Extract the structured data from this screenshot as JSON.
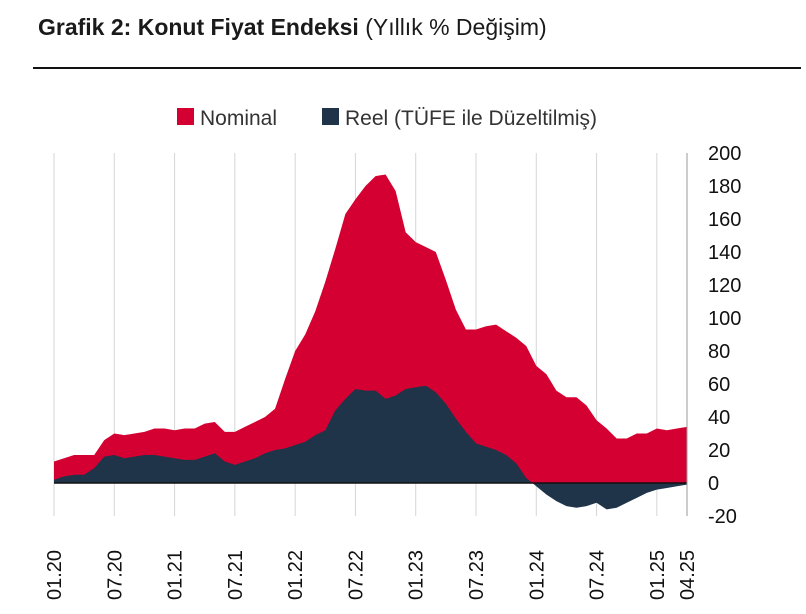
{
  "header": {
    "title_bold": "Grafik 2: Konut Fiyat Endeksi",
    "title_rest": "(Yıllık % Değişim)"
  },
  "chart_data": {
    "type": "area",
    "title": "Grafik 2: Konut Fiyat Endeksi (Yıllık % Değişim)",
    "xlabel": "",
    "ylabel": "",
    "ylim": [
      -20,
      200
    ],
    "yticks": [
      "200",
      "180",
      "160",
      "140",
      "120",
      "100",
      "80",
      "60",
      "40",
      "20",
      "0",
      "-20"
    ],
    "xtick_labels": [
      "01.20",
      "07.20",
      "01.21",
      "07.21",
      "01.22",
      "07.22",
      "01.23",
      "07.23",
      "01.24",
      "07.24",
      "01.25",
      "04.25"
    ],
    "grid": "vertical",
    "legend_position": "top",
    "x": [
      "01.20",
      "02.20",
      "03.20",
      "04.20",
      "05.20",
      "06.20",
      "07.20",
      "08.20",
      "09.20",
      "10.20",
      "11.20",
      "12.20",
      "01.21",
      "02.21",
      "03.21",
      "04.21",
      "05.21",
      "06.21",
      "07.21",
      "08.21",
      "09.21",
      "10.21",
      "11.21",
      "12.21",
      "01.22",
      "02.22",
      "03.22",
      "04.22",
      "05.22",
      "06.22",
      "07.22",
      "08.22",
      "09.22",
      "10.22",
      "11.22",
      "12.22",
      "01.23",
      "02.23",
      "03.23",
      "04.23",
      "05.23",
      "06.23",
      "07.23",
      "08.23",
      "09.23",
      "10.23",
      "11.23",
      "12.23",
      "01.24",
      "02.24",
      "03.24",
      "04.24",
      "05.24",
      "06.24",
      "07.24",
      "08.24",
      "09.24",
      "10.24",
      "11.24",
      "12.24",
      "01.25",
      "02.25",
      "03.25",
      "04.25"
    ],
    "series": [
      {
        "name": "Nominal",
        "color": "#d50032",
        "values": [
          13,
          15,
          17,
          17,
          17,
          26,
          30,
          29,
          30,
          31,
          33,
          33,
          32,
          33,
          33,
          36,
          37,
          31,
          31,
          34,
          37,
          40,
          45,
          63,
          80,
          90,
          104,
          122,
          142,
          163,
          172,
          180,
          186,
          187,
          177,
          152,
          146,
          143,
          140,
          123,
          105,
          93,
          93,
          95,
          96,
          92,
          88,
          83,
          71,
          66,
          56,
          52,
          52,
          47,
          38,
          33,
          27,
          27,
          30,
          30,
          33,
          32,
          33,
          34
        ]
      },
      {
        "name": "Reel (TÜFE ile Düzeltilmiş)",
        "color": "#1f3349",
        "values": [
          2,
          4,
          5,
          5,
          9,
          16,
          17,
          15,
          16,
          17,
          17,
          16,
          15,
          14,
          14,
          16,
          18,
          13,
          11,
          13,
          15,
          18,
          20,
          21,
          23,
          25,
          29,
          32,
          44,
          51,
          57,
          56,
          56,
          51,
          53,
          57,
          58,
          59,
          55,
          48,
          39,
          31,
          24,
          22,
          20,
          17,
          12,
          3,
          -2,
          -7,
          -11,
          -14,
          -15,
          -14,
          -12,
          -16,
          -15,
          -12,
          -9,
          -6,
          -4,
          -3,
          -2,
          -1
        ]
      }
    ]
  }
}
